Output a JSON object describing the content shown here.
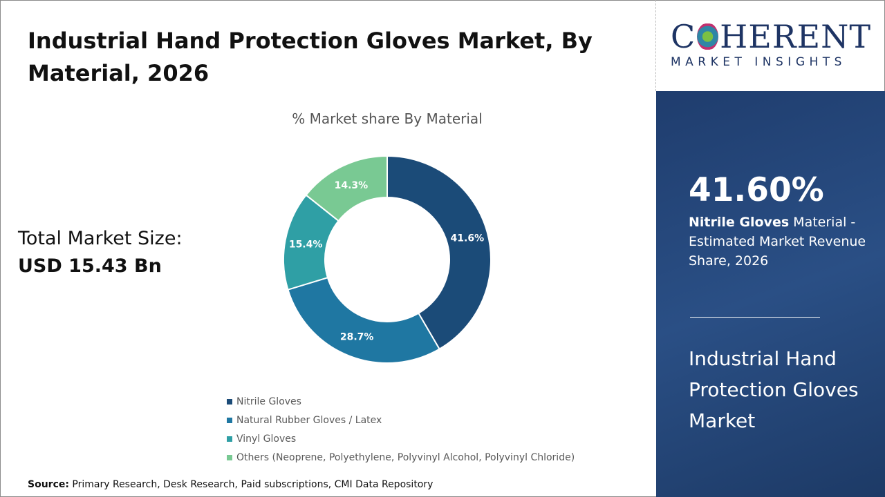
{
  "title": "Industrial Hand Protection Gloves Market, By Material, 2026",
  "total": {
    "label": "Total Market Size:",
    "value": "USD 15.43 Bn"
  },
  "source": {
    "label": "Source:",
    "text": "Primary Research, Desk Research, Paid subscriptions, CMI Data Repository"
  },
  "logo": {
    "brand": "COHERENT",
    "tagline": "MARKET INSIGHTS"
  },
  "side": {
    "kpi": "41.60%",
    "kpi_bold": "Nitrile Gloves",
    "kpi_text": " Material - Estimated Market Revenue Share, 2026",
    "title": "Industrial Hand Protection Gloves Market"
  },
  "chart_data": {
    "type": "pie",
    "donut": true,
    "title": "% Market share By Material",
    "categories": [
      "Nitrile Gloves",
      "Natural Rubber Gloves / Latex",
      "Vinyl Gloves",
      "Others (Neoprene, Polyethylene, Polyvinyl Alcohol, Polyvinyl Chloride)"
    ],
    "values": [
      41.6,
      28.7,
      15.4,
      14.3
    ],
    "labels": [
      "41.6%",
      "28.7%",
      "15.4%",
      "14.3%"
    ],
    "colors": [
      "#1b4b78",
      "#1f77a2",
      "#2f9fa5",
      "#79c993"
    ],
    "legend": "bottom"
  }
}
